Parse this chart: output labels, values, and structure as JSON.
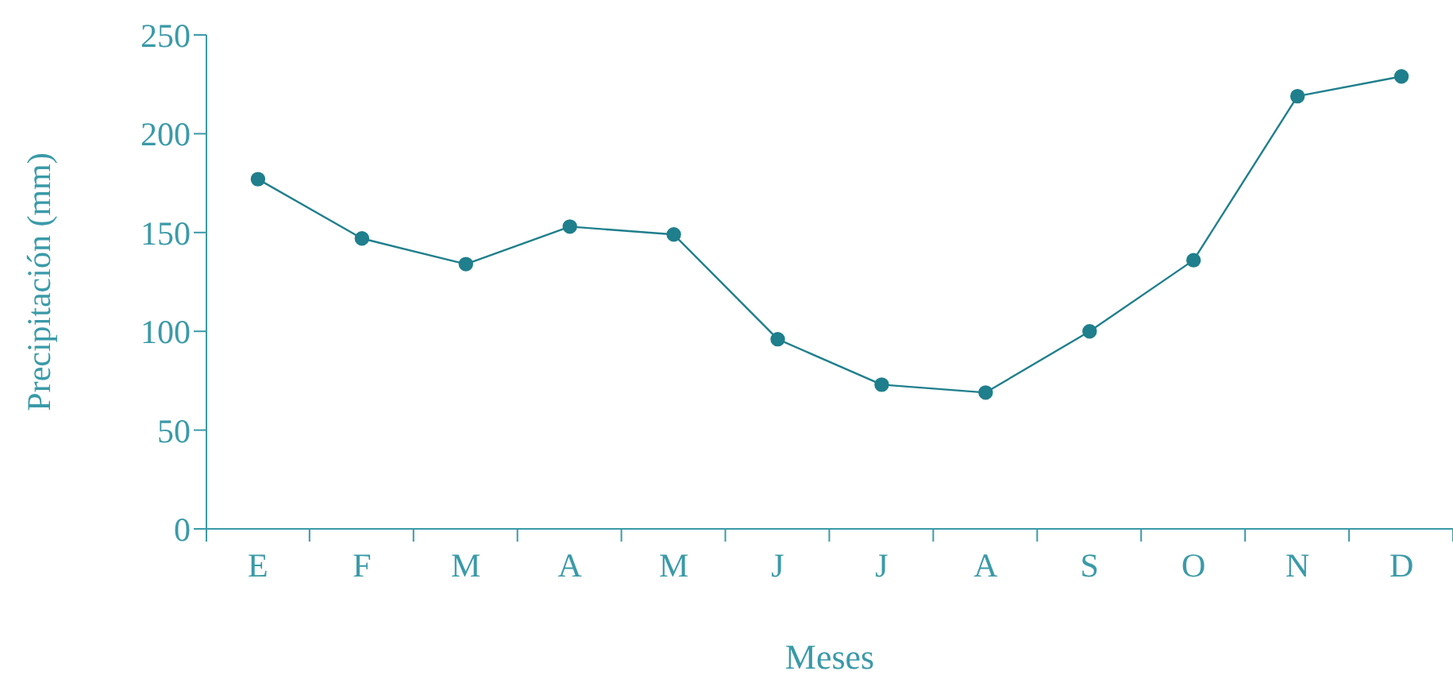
{
  "chart_data": {
    "type": "line",
    "xlabel": "Meses",
    "ylabel": "Precipitación (mm)",
    "categories": [
      "E",
      "F",
      "M",
      "A",
      "M",
      "J",
      "J",
      "A",
      "S",
      "O",
      "N",
      "D"
    ],
    "series": [
      {
        "color": "#1f7f8c",
        "values": [
          177,
          147,
          134,
          153,
          149,
          96,
          73,
          69,
          100,
          136,
          219,
          229
        ]
      }
    ],
    "ylim": [
      0,
      250
    ],
    "yticks": [
      0,
      50,
      100,
      150,
      200,
      250
    ],
    "grid": false,
    "legend": false,
    "marker": "circle",
    "line_style": "solid"
  }
}
